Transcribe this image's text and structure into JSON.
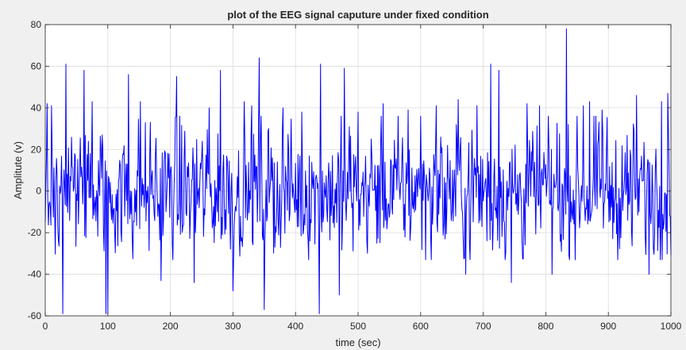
{
  "chart_data": {
    "type": "line",
    "title": "plot of the EEG signal caputure under fixed condition",
    "xlabel": "time (sec)",
    "ylabel": "Amplitute (v)",
    "xlim": [
      0,
      1000
    ],
    "ylim": [
      -60,
      80
    ],
    "xticks": [
      0,
      100,
      200,
      300,
      400,
      500,
      600,
      700,
      800,
      900,
      1000
    ],
    "yticks": [
      -60,
      -40,
      -20,
      0,
      20,
      40,
      60,
      80
    ],
    "xtick_labels": [
      "0",
      "100",
      "200",
      "300",
      "400",
      "500",
      "600",
      "700",
      "800",
      "900",
      "1000"
    ],
    "ytick_labels": [
      "-60",
      "-40",
      "-20",
      "0",
      "20",
      "40",
      "60",
      "80"
    ],
    "grid": true,
    "series": [
      {
        "color": "#0000ff",
        "x_start": 0,
        "x_step": 1,
        "peaks": [
          {
            "x": 3,
            "y": 42
          },
          {
            "x": 10,
            "y": 41
          },
          {
            "x": 28,
            "y": -59
          },
          {
            "x": 33,
            "y": 61
          },
          {
            "x": 62,
            "y": 58
          },
          {
            "x": 75,
            "y": 43
          },
          {
            "x": 97,
            "y": -59
          },
          {
            "x": 100,
            "y": -59
          },
          {
            "x": 133,
            "y": 56
          },
          {
            "x": 152,
            "y": 43
          },
          {
            "x": 185,
            "y": -43
          },
          {
            "x": 210,
            "y": 55
          },
          {
            "x": 238,
            "y": -44
          },
          {
            "x": 262,
            "y": 40
          },
          {
            "x": 280,
            "y": 58
          },
          {
            "x": 300,
            "y": -48
          },
          {
            "x": 318,
            "y": 43
          },
          {
            "x": 330,
            "y": 41
          },
          {
            "x": 342,
            "y": 64
          },
          {
            "x": 350,
            "y": -57
          },
          {
            "x": 380,
            "y": 40
          },
          {
            "x": 410,
            "y": 38
          },
          {
            "x": 438,
            "y": -59
          },
          {
            "x": 440,
            "y": 61
          },
          {
            "x": 470,
            "y": -50
          },
          {
            "x": 478,
            "y": 59
          },
          {
            "x": 500,
            "y": 38
          },
          {
            "x": 540,
            "y": 42
          },
          {
            "x": 580,
            "y": 39
          },
          {
            "x": 600,
            "y": 36
          },
          {
            "x": 625,
            "y": 41
          },
          {
            "x": 660,
            "y": 44
          },
          {
            "x": 672,
            "y": -40
          },
          {
            "x": 690,
            "y": 41
          },
          {
            "x": 712,
            "y": 61
          },
          {
            "x": 725,
            "y": 58
          },
          {
            "x": 745,
            "y": -44
          },
          {
            "x": 770,
            "y": 42
          },
          {
            "x": 790,
            "y": 41
          },
          {
            "x": 810,
            "y": -40
          },
          {
            "x": 833,
            "y": 78
          },
          {
            "x": 860,
            "y": 41
          },
          {
            "x": 870,
            "y": 43
          },
          {
            "x": 890,
            "y": 39
          },
          {
            "x": 945,
            "y": 46
          },
          {
            "x": 965,
            "y": -40
          },
          {
            "x": 985,
            "y": 43
          },
          {
            "x": 995,
            "y": 47
          }
        ]
      }
    ]
  }
}
